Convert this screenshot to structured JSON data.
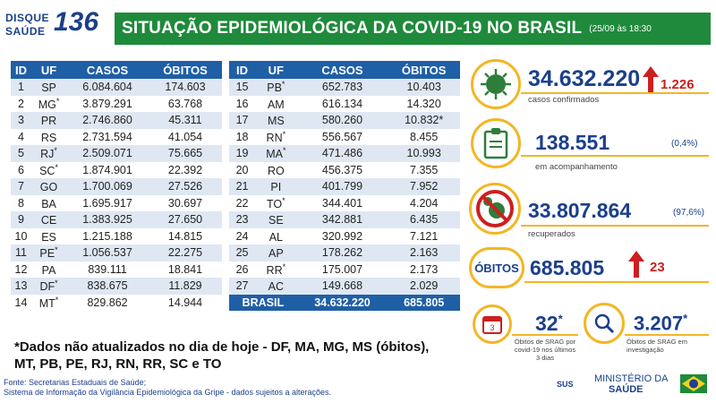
{
  "header": {
    "logo_line1": "DISQUE",
    "logo_line2": "SAÚDE",
    "logo_number": "136",
    "title": "SITUAÇÃO EPIDEMIOLÓGICA DA COVID-19 NO BRASIL",
    "date": "(25/09 às 18:30"
  },
  "table_headers": [
    "ID",
    "UF",
    "CASOS",
    "ÓBITOS"
  ],
  "table_left": [
    {
      "id": "1",
      "uf": "SP",
      "star": "",
      "casos": "6.084.604",
      "obitos": "174.603"
    },
    {
      "id": "2",
      "uf": "MG",
      "star": "*",
      "casos": "3.879.291",
      "obitos": "63.768"
    },
    {
      "id": "3",
      "uf": "PR",
      "star": "",
      "casos": "2.746.860",
      "obitos": "45.311"
    },
    {
      "id": "4",
      "uf": "RS",
      "star": "",
      "casos": "2.731.594",
      "obitos": "41.054"
    },
    {
      "id": "5",
      "uf": "RJ",
      "star": "*",
      "casos": "2.509.071",
      "obitos": "75.665"
    },
    {
      "id": "6",
      "uf": "SC",
      "star": "*",
      "casos": "1.874.901",
      "obitos": "22.392"
    },
    {
      "id": "7",
      "uf": "GO",
      "star": "",
      "casos": "1.700.069",
      "obitos": "27.526"
    },
    {
      "id": "8",
      "uf": "BA",
      "star": "",
      "casos": "1.695.917",
      "obitos": "30.697"
    },
    {
      "id": "9",
      "uf": "CE",
      "star": "",
      "casos": "1.383.925",
      "obitos": "27.650"
    },
    {
      "id": "10",
      "uf": "ES",
      "star": "",
      "casos": "1.215.188",
      "obitos": "14.815"
    },
    {
      "id": "11",
      "uf": "PE",
      "star": "*",
      "casos": "1.056.537",
      "obitos": "22.275"
    },
    {
      "id": "12",
      "uf": "PA",
      "star": "",
      "casos": "839.111",
      "obitos": "18.841"
    },
    {
      "id": "13",
      "uf": "DF",
      "star": "*",
      "casos": "838.675",
      "obitos": "11.829"
    },
    {
      "id": "14",
      "uf": "MT",
      "star": "*",
      "casos": "829.862",
      "obitos": "14.944"
    }
  ],
  "table_right": [
    {
      "id": "15",
      "uf": "PB",
      "star": "*",
      "casos": "652.783",
      "obitos": "10.403"
    },
    {
      "id": "16",
      "uf": "AM",
      "star": "",
      "casos": "616.134",
      "obitos": "14.320"
    },
    {
      "id": "17",
      "uf": "MS",
      "star": "",
      "casos": "580.260",
      "obitos": "10.832*"
    },
    {
      "id": "18",
      "uf": "RN",
      "star": "*",
      "casos": "556.567",
      "obitos": "8.455"
    },
    {
      "id": "19",
      "uf": "MA",
      "star": "*",
      "casos": "471.486",
      "obitos": "10.993"
    },
    {
      "id": "20",
      "uf": "RO",
      "star": "",
      "casos": "456.375",
      "obitos": "7.355"
    },
    {
      "id": "21",
      "uf": "PI",
      "star": "",
      "casos": "401.799",
      "obitos": "7.952"
    },
    {
      "id": "22",
      "uf": "TO",
      "star": "*",
      "casos": "344.401",
      "obitos": "4.204"
    },
    {
      "id": "23",
      "uf": "SE",
      "star": "",
      "casos": "342.881",
      "obitos": "6.435"
    },
    {
      "id": "24",
      "uf": "AL",
      "star": "",
      "casos": "320.992",
      "obitos": "7.121"
    },
    {
      "id": "25",
      "uf": "AP",
      "star": "",
      "casos": "178.262",
      "obitos": "2.163"
    },
    {
      "id": "26",
      "uf": "RR",
      "star": "*",
      "casos": "175.007",
      "obitos": "2.173"
    },
    {
      "id": "27",
      "uf": "AC",
      "star": "",
      "casos": "149.668",
      "obitos": "2.029"
    }
  ],
  "total": {
    "label": "BRASIL",
    "casos": "34.632.220",
    "obitos": "685.805"
  },
  "stats": {
    "confirmados": {
      "value": "34.632.220",
      "delta": "1.226",
      "label": "casos confirmados"
    },
    "acompanhamento": {
      "value": "138.551",
      "pct": "(0,4%)",
      "label": "em acompanhamento"
    },
    "recuperados": {
      "value": "33.807.864",
      "pct": "(97,6%)",
      "label": "recuperados"
    },
    "obitos": {
      "badge": "ÓBITOS",
      "value": "685.805",
      "delta": "23"
    },
    "srag_3dias": {
      "value": "32",
      "star": "*",
      "label1": "Óbitos de SRAG por",
      "label2": "covid-19 nos últimos",
      "label3": "3 dias",
      "calendar_num": "3"
    },
    "srag_invest": {
      "value": "3.207",
      "star": "*",
      "label1": "Óbitos de SRAG em",
      "label2": "investigação"
    }
  },
  "footnote": {
    "line1": "*Dados não atualizados no dia de hoje - DF, MA, MG, MS (óbitos),",
    "line2": "MT, PB, PE, RJ, RN, RR, SC e TO"
  },
  "source": {
    "line1": "Fonte: Secretarias Estaduais de Saúde;",
    "line2": "Sistema de Informação da Vigilância Epidemiológica da Gripe - dados sujeitos a alterações."
  },
  "brand": {
    "sus": "SUS",
    "ministry1": "MINISTÉRIO DA",
    "ministry2": "SAÚDE"
  },
  "colors": {
    "green": "#1f8a3b",
    "blue": "#1f5fa6",
    "navy": "#1b3f8b",
    "gold": "#f3b625",
    "red": "#cc1f1f"
  }
}
